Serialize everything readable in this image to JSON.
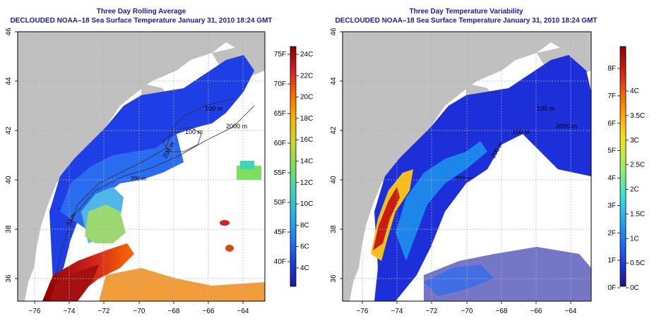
{
  "left_panel": {
    "title_line1": "Three Day Rolling Average",
    "title_line2": "DECLOUDED NOAA–18 Sea Surface Temperature January 31, 2010 18:24 GMT",
    "colorbar": {
      "f_labels": [
        "75F",
        "70F",
        "65F",
        "60F",
        "55F",
        "50F",
        "45F",
        "40F"
      ],
      "c_labels": [
        "24C",
        "22C",
        "20C",
        "18C",
        "16C",
        "14C",
        "12C",
        "10C",
        "8C",
        "6C",
        "4C"
      ],
      "gradient_stops": [
        "#8b0000",
        "#d71e1e",
        "#ff6a00",
        "#f6b400",
        "#c8d830",
        "#7ee05a",
        "#3fd6b8",
        "#27b4e8",
        "#1f7ef0",
        "#1b3fe0",
        "#1a1aa0"
      ]
    },
    "contour_labels": [
      "100 m",
      "2000 m",
      "100 m",
      "200 m",
      "200 m",
      "60 m"
    ]
  },
  "right_panel": {
    "title_line1": "Three Day Temperature Variability",
    "title_line2": "DECLOUDED NOAA–18 Sea Surface Temperature January 31, 2010 18:24 GMT",
    "colorbar": {
      "f_labels": [
        "8F",
        "7F",
        "6F",
        "5F",
        "4F",
        "3F",
        "2F",
        "1F",
        "0F"
      ],
      "c_labels": [
        "4C",
        "3.5C",
        "3C",
        "2.5C",
        "2C",
        "1.5C",
        "1C",
        "0.5C",
        "0C"
      ],
      "gradient_stops": [
        "#8b0000",
        "#e02a12",
        "#ff8c00",
        "#f5e11e",
        "#9ef05a",
        "#38e0d8",
        "#1d9cf0",
        "#1c4ee8",
        "#18128a"
      ]
    },
    "contour_labels": [
      "100 m",
      "2000 m",
      "100 m",
      "200 m",
      "200 m"
    ]
  },
  "lat_labels": [
    "46",
    "44",
    "42",
    "40",
    "38",
    "36"
  ],
  "lon_labels": [
    "−76",
    "−74",
    "−72",
    "−70",
    "−68",
    "−66",
    "−64"
  ],
  "colors": {
    "title": "#1a1aa8",
    "land": "#c0c0c0",
    "grid": "#b0b0b0"
  }
}
